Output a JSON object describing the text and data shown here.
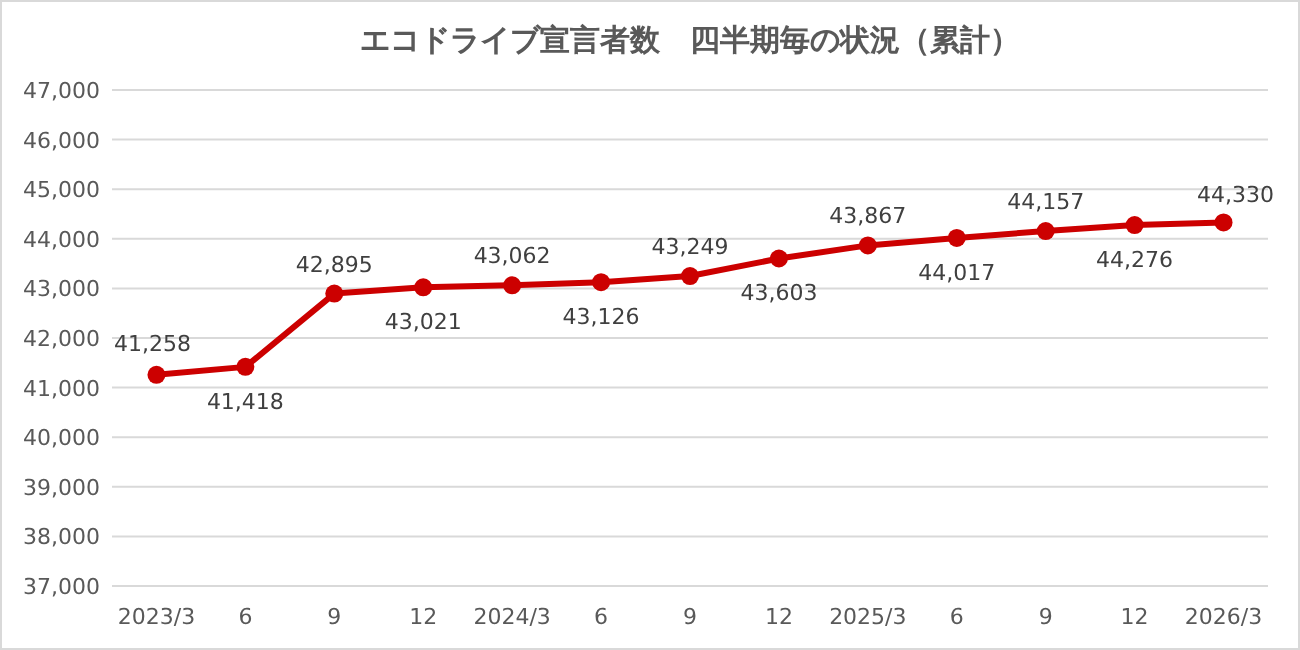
{
  "chart_data": {
    "type": "line",
    "title": "エコドライブ宣言者数　四半期毎の状況（累計）",
    "categories": [
      "2023/3",
      "6",
      "9",
      "12",
      "2024/3",
      "6",
      "9",
      "12",
      "2025/3",
      "6",
      "9",
      "12",
      "2026/3"
    ],
    "series": [
      {
        "color": "#cc0000",
        "values": [
          41258,
          41418,
          42895,
          43021,
          43062,
          43126,
          43249,
          43603,
          43867,
          44017,
          44157,
          44276,
          44330
        ],
        "value_labels": [
          "41,258",
          "41,418",
          "42,895",
          "43,021",
          "43,062",
          "43,126",
          "43,249",
          "43,603",
          "43,867",
          "44,017",
          "44,157",
          "44,276",
          "44,330"
        ]
      }
    ],
    "ylim": [
      37000,
      47000
    ],
    "yticks": [
      {
        "value": 37000,
        "label": "37,000"
      },
      {
        "value": 38000,
        "label": "38,000"
      },
      {
        "value": 39000,
        "label": "39,000"
      },
      {
        "value": 40000,
        "label": "40,000"
      },
      {
        "value": 41000,
        "label": "41,000"
      },
      {
        "value": 42000,
        "label": "42,000"
      },
      {
        "value": 43000,
        "label": "43,000"
      },
      {
        "value": 44000,
        "label": "44,000"
      },
      {
        "value": 45000,
        "label": "45,000"
      },
      {
        "value": 46000,
        "label": "46,000"
      },
      {
        "value": 47000,
        "label": "47,000"
      }
    ],
    "grid": "y",
    "marker": "circle",
    "line_style": "solid"
  }
}
